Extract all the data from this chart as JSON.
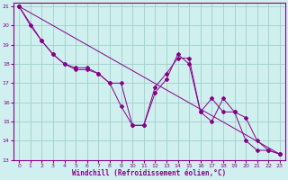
{
  "xlabel": "Windchill (Refroidissement éolien,°C)",
  "background_color": "#cff0ee",
  "grid_color": "#9ecfca",
  "line_color": "#880088",
  "xlim": [
    -0.5,
    23.5
  ],
  "ylim": [
    13,
    21.2
  ],
  "yticks": [
    13,
    14,
    15,
    16,
    17,
    18,
    19,
    20,
    21
  ],
  "xticks": [
    0,
    1,
    2,
    3,
    4,
    5,
    6,
    7,
    8,
    9,
    10,
    11,
    12,
    13,
    14,
    15,
    16,
    17,
    18,
    19,
    20,
    21,
    22,
    23
  ],
  "series_zigzag1": {
    "x": [
      0,
      1,
      2,
      3,
      4,
      5,
      6,
      7,
      8,
      9,
      10,
      11,
      12,
      13,
      14,
      15,
      16,
      17,
      18,
      19,
      20,
      21,
      22,
      23
    ],
    "y": [
      21.0,
      20.0,
      19.2,
      18.5,
      18.0,
      17.8,
      17.8,
      17.5,
      17.0,
      15.8,
      14.8,
      14.8,
      16.5,
      17.2,
      18.5,
      18.0,
      15.5,
      15.0,
      16.2,
      15.5,
      15.2,
      14.0,
      13.5,
      13.3
    ]
  },
  "series_zigzag2": {
    "x": [
      0,
      2,
      3,
      4,
      5,
      6,
      7,
      8,
      9,
      10,
      11,
      12,
      13,
      14,
      15,
      16,
      17,
      18,
      19,
      20,
      21,
      22,
      23
    ],
    "y": [
      21.0,
      19.2,
      18.5,
      18.0,
      17.7,
      17.7,
      17.5,
      17.0,
      17.0,
      14.8,
      14.8,
      16.8,
      17.5,
      18.3,
      18.3,
      15.5,
      16.2,
      15.5,
      15.5,
      14.0,
      13.5,
      13.5,
      13.3
    ]
  },
  "series_linear": {
    "x": [
      0,
      23
    ],
    "y": [
      21.0,
      13.3
    ]
  }
}
